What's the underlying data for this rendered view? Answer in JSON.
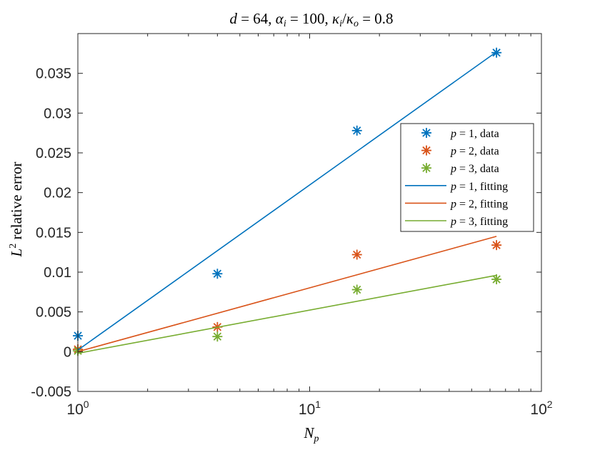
{
  "colors": {
    "p1": "#0072BD",
    "p2": "#D95319",
    "p3": "#77AC30",
    "axis": "#262626",
    "background": "#ffffff"
  },
  "chart_data": {
    "type": "scatter",
    "title": {
      "part1_var": "d",
      "part1_eq": " = 64, ",
      "part2_var": "α",
      "part2_sub": "i",
      "part2_eq": " = 100, ",
      "part3_var1": "κ",
      "part3_sub1": "i",
      "part3_slash": "/",
      "part3_var2": "κ",
      "part3_sub2": "o",
      "part3_eq": " = 0.8"
    },
    "xlabel": {
      "var": "N",
      "sub": "p"
    },
    "ylabel": {
      "var": "L",
      "sup": "2",
      "text": " relative error"
    },
    "x_scale": "log",
    "xlim": [
      1,
      100
    ],
    "ylim": [
      -0.005,
      0.04
    ],
    "x_ticks": [
      {
        "value": 1,
        "base": "10",
        "exp": "0"
      },
      {
        "value": 10,
        "base": "10",
        "exp": "1"
      },
      {
        "value": 100,
        "base": "10",
        "exp": "2"
      }
    ],
    "y_ticks": [
      {
        "value": -0.005,
        "label": "-0.005"
      },
      {
        "value": 0,
        "label": "0"
      },
      {
        "value": 0.005,
        "label": "0.005"
      },
      {
        "value": 0.01,
        "label": "0.01"
      },
      {
        "value": 0.015,
        "label": "0.015"
      },
      {
        "value": 0.02,
        "label": "0.02"
      },
      {
        "value": 0.025,
        "label": "0.025"
      },
      {
        "value": 0.03,
        "label": "0.03"
      },
      {
        "value": 0.035,
        "label": "0.035"
      }
    ],
    "x": [
      1,
      4,
      16,
      64
    ],
    "series": [
      {
        "name": "p = 1, data",
        "pvalue": "1",
        "kind": "data",
        "colorKey": "p1",
        "values": [
          0.002,
          0.0098,
          0.0278,
          0.0376
        ]
      },
      {
        "name": "p = 2, data",
        "pvalue": "2",
        "kind": "data",
        "colorKey": "p2",
        "values": [
          0.0003,
          0.0031,
          0.0122,
          0.0134
        ]
      },
      {
        "name": "p = 3, data",
        "pvalue": "3",
        "kind": "data",
        "colorKey": "p3",
        "values": [
          0.0001,
          0.0019,
          0.0078,
          0.0091
        ]
      },
      {
        "name": "p = 1, fitting",
        "pvalue": "1",
        "kind": "fitting",
        "colorKey": "p1",
        "x": [
          1,
          64
        ],
        "values": [
          0.0002,
          0.0377
        ]
      },
      {
        "name": "p = 2, fitting",
        "pvalue": "2",
        "kind": "fitting",
        "colorKey": "p2",
        "x": [
          1,
          64
        ],
        "values": [
          0.0,
          0.0145
        ]
      },
      {
        "name": "p = 3, fitting",
        "pvalue": "3",
        "kind": "fitting",
        "colorKey": "p3",
        "x": [
          1,
          64
        ],
        "values": [
          -0.0002,
          0.0096
        ]
      }
    ],
    "legend_position": "right",
    "legend_kind_labels": {
      "data": ", data",
      "fitting": ", fitting"
    },
    "legend_var": "p",
    "legend_eq": " = "
  }
}
